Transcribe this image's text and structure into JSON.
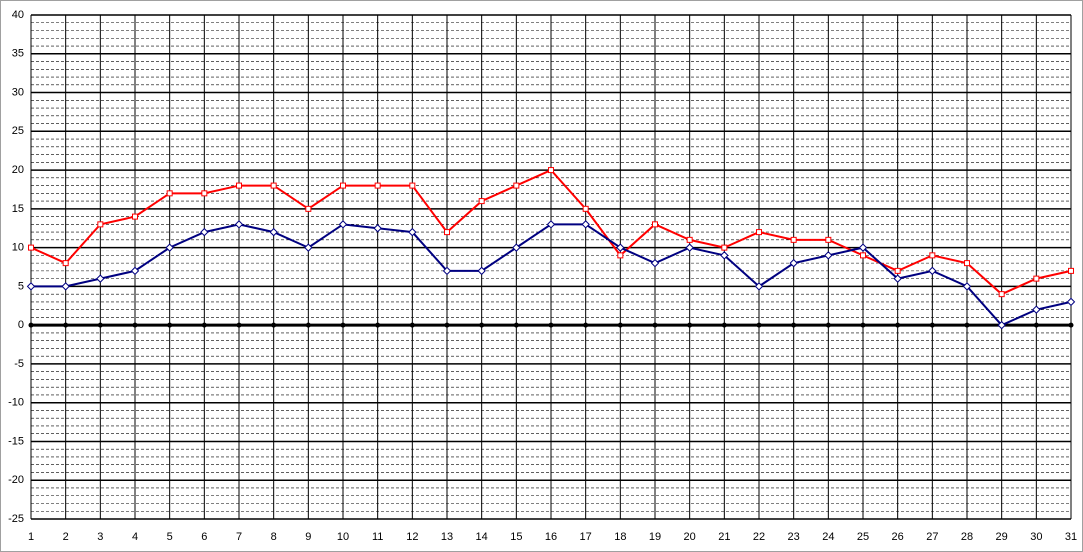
{
  "chart_data": {
    "type": "line",
    "x": [
      1,
      2,
      3,
      4,
      5,
      6,
      7,
      8,
      9,
      10,
      11,
      12,
      13,
      14,
      15,
      16,
      17,
      18,
      19,
      20,
      21,
      22,
      23,
      24,
      25,
      26,
      27,
      28,
      29,
      30,
      31
    ],
    "xlim": [
      1,
      31
    ],
    "xticks": [
      1,
      2,
      3,
      4,
      5,
      6,
      7,
      8,
      9,
      10,
      11,
      12,
      13,
      14,
      15,
      16,
      17,
      18,
      19,
      20,
      21,
      22,
      23,
      24,
      25,
      26,
      27,
      28,
      29,
      30,
      31
    ],
    "ylim": [
      -25,
      40
    ],
    "yticks": [
      -25,
      -20,
      -15,
      -10,
      -5,
      0,
      5,
      10,
      15,
      20,
      25,
      30,
      35,
      40
    ],
    "grid": true,
    "minor_grid": true,
    "series": [
      {
        "color": "#ff0000",
        "marker": "square",
        "values": [
          10,
          8,
          13,
          14,
          17,
          17,
          18,
          18,
          15,
          18,
          18,
          18,
          12,
          16,
          18,
          20,
          15,
          9,
          13,
          11,
          10,
          12,
          11,
          11,
          9,
          7,
          9,
          8,
          4,
          6,
          7
        ]
      },
      {
        "color": "#000080",
        "marker": "diamond",
        "values": [
          5,
          5,
          6,
          7,
          10,
          12,
          13,
          12,
          10,
          13,
          12.5,
          12,
          7,
          7,
          10,
          13,
          13,
          10,
          8,
          10,
          9,
          5,
          8,
          9,
          10,
          6,
          7,
          5,
          0,
          2,
          3
        ]
      }
    ]
  }
}
